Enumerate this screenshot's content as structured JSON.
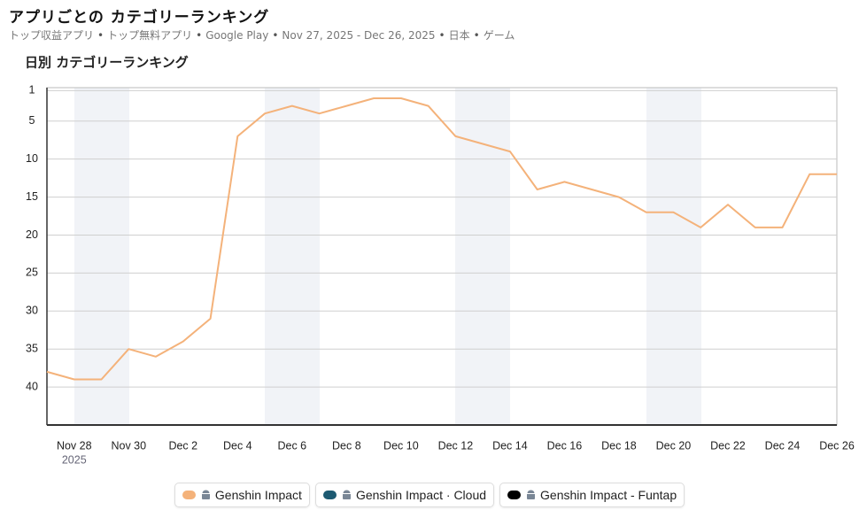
{
  "header": {
    "title": "アプリごとの カテゴリーランキング",
    "subtitle": [
      "トップ収益アプリ",
      "トップ無料アプリ",
      "Google Play",
      "Nov 27, 2025 - Dec 26, 2025",
      "日本",
      "ゲーム"
    ]
  },
  "chart_data": {
    "type": "line",
    "title": "日別 カテゴリーランキング",
    "categories": [
      null,
      "Nov 28",
      null,
      "Nov 30",
      null,
      "Dec 2",
      null,
      "Dec 4",
      null,
      "Dec 6",
      null,
      "Dec 8",
      null,
      "Dec 10",
      null,
      "Dec 12",
      null,
      "Dec 14",
      null,
      "Dec 16",
      null,
      "Dec 18",
      null,
      "Dec 20",
      null,
      "Dec 22",
      null,
      "Dec 24",
      null,
      "Dec 26"
    ],
    "year_label": "2025",
    "series": [
      {
        "name": "Genshin Impact",
        "color": "#f4b27a",
        "values": [
          38,
          39,
          39,
          35,
          36,
          34,
          31,
          7,
          4,
          3,
          4,
          3,
          2,
          2,
          3,
          7,
          8,
          9,
          14,
          13,
          14,
          15,
          17,
          17,
          19,
          16,
          19,
          19,
          12,
          12
        ]
      },
      {
        "name": "Genshin Impact · Cloud",
        "color": "#1d5a72",
        "values": [
          null,
          null,
          null,
          null,
          null,
          null,
          null,
          null,
          null,
          null,
          null,
          null,
          null,
          null,
          null,
          null,
          null,
          null,
          null,
          null,
          null,
          null,
          null,
          null,
          null,
          null,
          null,
          null,
          null,
          null
        ]
      },
      {
        "name": "Genshin Impact - Funtap",
        "color": "#000000",
        "values": [
          null,
          null,
          null,
          null,
          null,
          null,
          null,
          null,
          null,
          null,
          null,
          null,
          null,
          null,
          null,
          null,
          null,
          null,
          null,
          null,
          null,
          null,
          null,
          null,
          null,
          null,
          null,
          null,
          null,
          null
        ]
      }
    ],
    "ylim": [
      45,
      0.6
    ],
    "yticks": [
      1,
      5,
      10,
      15,
      20,
      25,
      30,
      35,
      40
    ],
    "grid": true
  }
}
